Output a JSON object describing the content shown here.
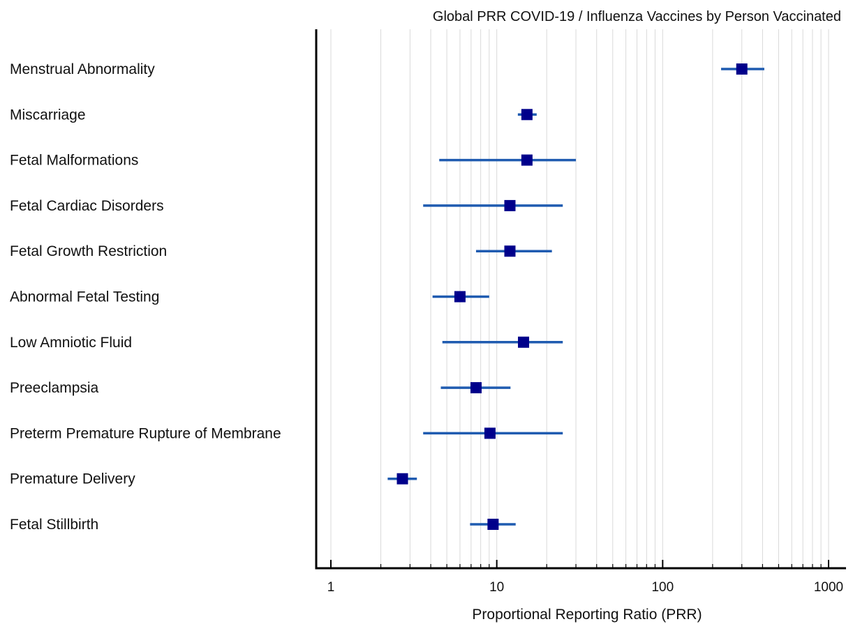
{
  "chart_data": {
    "type": "scatter",
    "subtype": "forest-plot",
    "title": "Global PRR COVID-19 / Influenza Vaccines by Person Vaccinated",
    "xlabel": "Proportional Reporting Ratio (PRR)",
    "ylabel": "",
    "x_scale": "log",
    "xlim": [
      0.9,
      1200
    ],
    "x_ticks": [
      1,
      10,
      100,
      1000
    ],
    "x_tick_labels": [
      "1",
      "10",
      "100",
      "1000"
    ],
    "grid": "vertical minor and major lines",
    "marker_color": "#00008B",
    "ci_color": "#1F5BB0",
    "categories": [
      "Menstrual Abnormality",
      "Miscarriage",
      "Fetal Malformations",
      "Fetal Cardiac Disorders",
      "Fetal Growth Restriction",
      "Abnormal Fetal Testing",
      "Low Amniotic Fluid",
      "Preeclampsia",
      "Preterm Premature Rupture of Membrane",
      "Premature Delivery",
      "Fetal Stillbirth"
    ],
    "series": [
      {
        "estimate": [
          300,
          15.2,
          15.2,
          12.0,
          12.0,
          6.0,
          14.5,
          7.5,
          9.1,
          2.7,
          9.5
        ],
        "ci_low": [
          225,
          13.4,
          4.5,
          3.6,
          7.5,
          4.1,
          4.7,
          4.6,
          3.6,
          2.2,
          6.9
        ],
        "ci_high": [
          410,
          17.4,
          30,
          25,
          21.5,
          9.0,
          25,
          12.1,
          25,
          3.3,
          13.0
        ]
      }
    ]
  }
}
